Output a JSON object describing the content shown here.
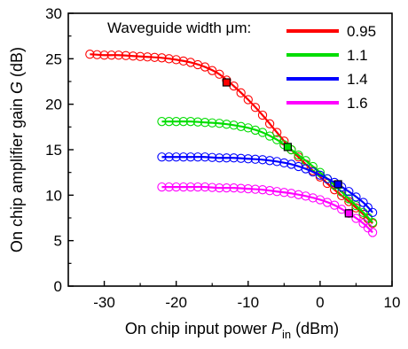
{
  "chart_data": {
    "type": "line",
    "xlabel": {
      "main": "On chip input power ",
      "var": "P",
      "sub": "in",
      "unit": " (dBm)"
    },
    "ylabel": {
      "main": "On chip amplifier gain ",
      "var": "G",
      "unit": " (dB)"
    },
    "xlim": [
      -35,
      10
    ],
    "ylim": [
      0,
      30
    ],
    "xticks": [
      "-30",
      "-20",
      "-10",
      "0",
      "10"
    ],
    "yticks": [
      "0",
      "5",
      "10",
      "15",
      "20",
      "25",
      "30"
    ],
    "legend_title": "Waveguide width μm:",
    "legend_position": "top-right",
    "marker_style": "open circles (measured) with solid line (fit)",
    "series": [
      {
        "name": "0.95",
        "color": "#ff0000",
        "x": [
          -32,
          -30,
          -28,
          -26,
          -24,
          -22,
          -20,
          -18,
          -16,
          -14,
          -12,
          -10,
          -8,
          -6,
          -4,
          -2,
          0,
          2,
          4,
          6,
          7.3
        ],
        "y": [
          25.5,
          25.4,
          25.4,
          25.3,
          25.2,
          25.1,
          24.9,
          24.6,
          24.1,
          23.3,
          22.0,
          20.5,
          18.8,
          16.9,
          15.0,
          13.4,
          12.0,
          10.6,
          9.3,
          7.9,
          6.9
        ],
        "marker": {
          "x": -13,
          "y": 22.4
        }
      },
      {
        "name": "1.1",
        "color": "#00dd00",
        "x": [
          -22,
          -20,
          -18,
          -16,
          -14,
          -12,
          -10,
          -8,
          -6,
          -4,
          -2,
          0,
          2,
          4,
          6,
          7.3
        ],
        "y": [
          18.1,
          18.1,
          18.1,
          18.0,
          17.9,
          17.7,
          17.4,
          16.9,
          16.1,
          15.0,
          13.8,
          12.5,
          11.1,
          9.6,
          8.1,
          7.0
        ],
        "marker": {
          "x": -4.5,
          "y": 15.3
        }
      },
      {
        "name": "1.4",
        "color": "#0000ff",
        "x": [
          -22,
          -20,
          -18,
          -16,
          -14,
          -12,
          -10,
          -8,
          -6,
          -4,
          -2,
          0,
          2,
          4,
          6,
          7.3
        ],
        "y": [
          14.2,
          14.2,
          14.2,
          14.2,
          14.1,
          14.1,
          14.0,
          13.9,
          13.7,
          13.4,
          12.9,
          12.2,
          11.4,
          10.4,
          9.2,
          8.1
        ],
        "marker": {
          "x": 2.5,
          "y": 11.2
        }
      },
      {
        "name": "1.6",
        "color": "#ff00ff",
        "x": [
          -22,
          -20,
          -18,
          -16,
          -14,
          -12,
          -10,
          -8,
          -6,
          -4,
          -2,
          0,
          2,
          4,
          6,
          7.3
        ],
        "y": [
          10.9,
          10.9,
          10.9,
          10.9,
          10.8,
          10.8,
          10.7,
          10.6,
          10.4,
          10.2,
          9.9,
          9.5,
          8.9,
          8.0,
          6.9,
          5.9
        ],
        "marker": {
          "x": 4,
          "y": 8.0
        }
      }
    ]
  }
}
